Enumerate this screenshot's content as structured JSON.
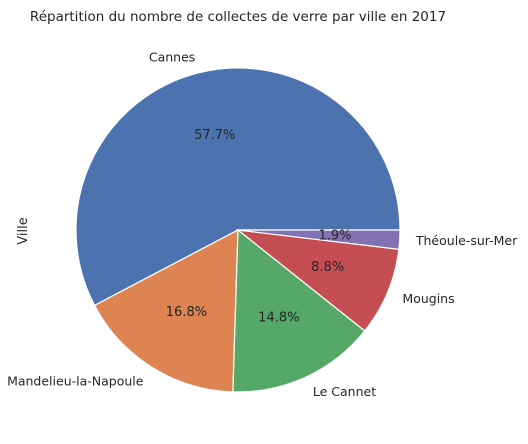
{
  "chart_data": {
    "type": "pie",
    "title": "Répartition du nombre de collectes de verre par ville en 2017",
    "ylabel": "Ville",
    "categories": [
      "Cannes",
      "Mandelieu-la-Napoule",
      "Le Cannet",
      "Mougins",
      "Théoule-sur-Mer"
    ],
    "values": [
      57.7,
      16.8,
      14.8,
      8.8,
      1.9
    ],
    "value_labels": [
      "57.7%",
      "16.8%",
      "14.8%",
      "8.8%",
      "1.9%"
    ],
    "colors": [
      "#4c72b0",
      "#dd8452",
      "#55a868",
      "#c44e52",
      "#8172b3"
    ],
    "start_angle": "0 degrees (3 o'clock), counterclockwise"
  }
}
